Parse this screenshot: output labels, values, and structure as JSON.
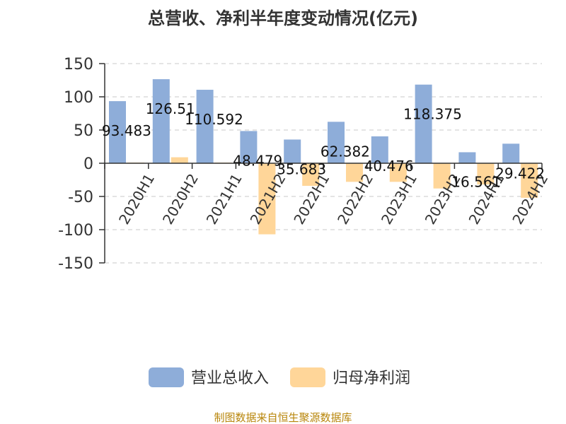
{
  "chart_data": {
    "type": "bar",
    "title": "总营收、净利半年度变动情况(亿元)",
    "categories": [
      "2020H1",
      "2020H2",
      "2021H1",
      "2021H2",
      "2022H1",
      "2022H2",
      "2023H1",
      "2023H2",
      "2024H1",
      "2024H2"
    ],
    "series": [
      {
        "name": "营业总收入",
        "color": "#8eadd9",
        "values": [
          93.483,
          126.51,
          110.592,
          48.479,
          35.683,
          62.382,
          40.476,
          118.375,
          16.561,
          29.422
        ],
        "labels": [
          "93.483",
          "126.51",
          "110.592",
          "48.479",
          "35.683",
          "62.382",
          "40.476",
          "118.375",
          "16.561",
          "29.422"
        ]
      },
      {
        "name": "归母净利润",
        "color": "#ffd699",
        "values": [
          1,
          9,
          1,
          -107,
          -34,
          -28,
          -28,
          -38,
          -32,
          -52
        ]
      }
    ],
    "yticks": [
      150,
      100,
      50,
      0,
      -50,
      -100,
      -150
    ],
    "ylim": [
      -150,
      150
    ],
    "grid": true,
    "legend_position": "bottom"
  },
  "footer": {
    "source": "制图数据来自恒生聚源数据库"
  }
}
